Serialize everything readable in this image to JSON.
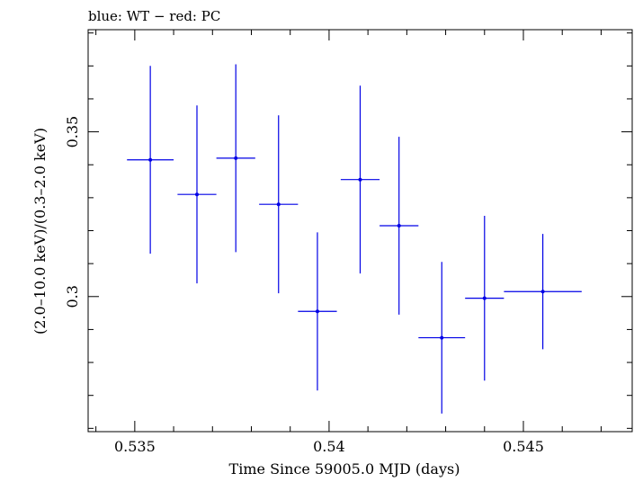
{
  "chart_data": {
    "type": "scatter",
    "title": "blue: WT − red: PC",
    "xlabel": "Time Since 59005.0 MJD (days)",
    "ylabel": "(2.0–10.0 keV)/(0.3–2.0 keV)",
    "xlim": [
      0.5338,
      0.5478
    ],
    "ylim": [
      0.259,
      0.381
    ],
    "xticks": [
      {
        "value": 0.535,
        "label": "0.535"
      },
      {
        "value": 0.54,
        "label": "0.54"
      },
      {
        "value": 0.545,
        "label": "0.545"
      }
    ],
    "yticks": [
      {
        "value": 0.3,
        "label": "0.3"
      },
      {
        "value": 0.35,
        "label": "0.35"
      }
    ],
    "grid": false,
    "series": [
      {
        "color": "#0000e6",
        "points": [
          {
            "x": 0.5354,
            "xerr": 0.0006,
            "y": 0.3415,
            "yerr": 0.0285
          },
          {
            "x": 0.5366,
            "xerr": 0.0005,
            "y": 0.331,
            "yerr": 0.027
          },
          {
            "x": 0.5376,
            "xerr": 0.0005,
            "y": 0.342,
            "yerr": 0.0285
          },
          {
            "x": 0.5387,
            "xerr": 0.0005,
            "y": 0.328,
            "yerr": 0.027
          },
          {
            "x": 0.5397,
            "xerr": 0.0005,
            "y": 0.2955,
            "yerr": 0.024
          },
          {
            "x": 0.5408,
            "xerr": 0.0005,
            "y": 0.3355,
            "yerr": 0.0285
          },
          {
            "x": 0.5418,
            "xerr": 0.0005,
            "y": 0.3215,
            "yerr": 0.027
          },
          {
            "x": 0.5429,
            "xerr": 0.0006,
            "y": 0.2875,
            "yerr": 0.023
          },
          {
            "x": 0.544,
            "xerr": 0.0005,
            "y": 0.2995,
            "yerr": 0.025
          },
          {
            "x": 0.5455,
            "xerr": 0.001,
            "y": 0.3015,
            "yerr": 0.0175
          }
        ]
      }
    ]
  }
}
